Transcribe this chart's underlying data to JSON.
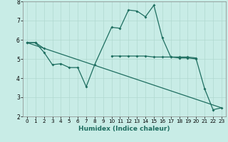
{
  "xlabel": "Humidex (Indice chaleur)",
  "xlim": [
    -0.5,
    23.5
  ],
  "ylim": [
    2,
    8
  ],
  "yticks": [
    2,
    3,
    4,
    5,
    6,
    7,
    8
  ],
  "xticks": [
    0,
    1,
    2,
    3,
    4,
    5,
    6,
    7,
    8,
    9,
    10,
    11,
    12,
    13,
    14,
    15,
    16,
    17,
    18,
    19,
    20,
    21,
    22,
    23
  ],
  "background_color": "#c8ece6",
  "grid_color": "#b0d8d0",
  "line_color": "#1e6e60",
  "line1_x": [
    0,
    1,
    2,
    3,
    4,
    5,
    6,
    7,
    8,
    10,
    11,
    12,
    13,
    14,
    15,
    16,
    17,
    18,
    19,
    20,
    21,
    22,
    23
  ],
  "line1_y": [
    5.85,
    5.85,
    5.35,
    4.7,
    4.75,
    4.55,
    4.55,
    3.55,
    4.7,
    6.65,
    6.6,
    7.55,
    7.5,
    7.2,
    7.8,
    6.1,
    5.1,
    5.05,
    5.05,
    5.0,
    3.45,
    2.35,
    2.45
  ],
  "line2_x": [
    0,
    1,
    2,
    10,
    11,
    12,
    13,
    14,
    15,
    16,
    17,
    18,
    19,
    20
  ],
  "line2_y": [
    5.85,
    5.85,
    5.55,
    5.15,
    5.15,
    5.15,
    5.15,
    5.15,
    5.1,
    5.1,
    5.1,
    5.1,
    5.1,
    5.05
  ],
  "line3_x": [
    0,
    23
  ],
  "line3_y": [
    5.85,
    2.45
  ]
}
